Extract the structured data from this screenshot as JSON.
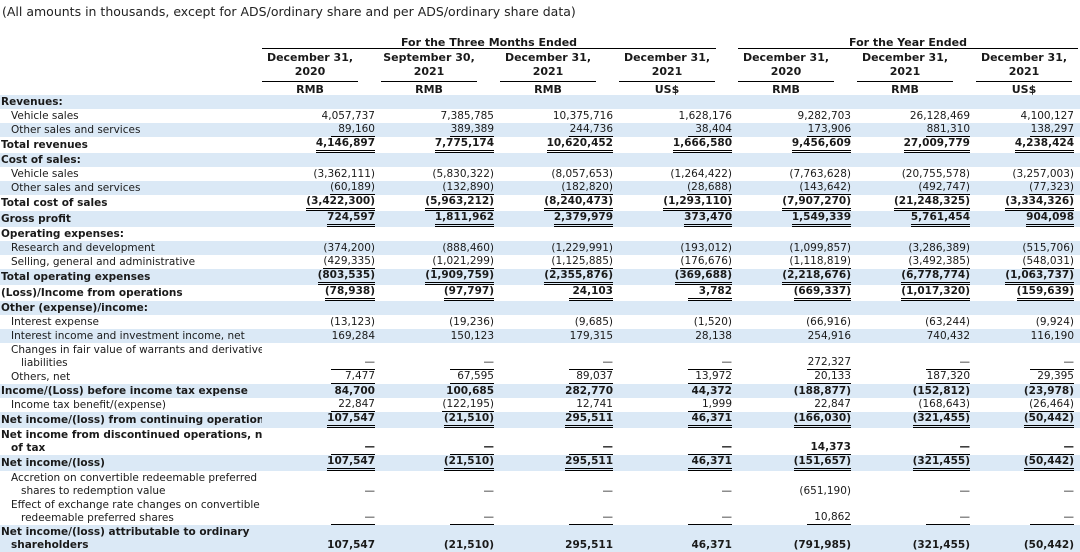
{
  "note": "(All amounts in thousands, except for ADS/ordinary share and per ADS/ordinary share data)",
  "groups": {
    "three_months": "For the Three Months Ended",
    "year": "For the Year Ended"
  },
  "columns": [
    {
      "line1": "December 31,",
      "line2": "2020",
      "ccy": "RMB"
    },
    {
      "line1": "September 30,",
      "line2": "2021",
      "ccy": "RMB"
    },
    {
      "line1": "December 31,",
      "line2": "2021",
      "ccy": "RMB"
    },
    {
      "line1": "December 31,",
      "line2": "2021",
      "ccy": "US$"
    },
    {
      "line1": "December 31,",
      "line2": "2020",
      "ccy": "RMB"
    },
    {
      "line1": "December 31,",
      "line2": "2021",
      "ccy": "RMB"
    },
    {
      "line1": "December 31,",
      "line2": "2021",
      "ccy": "US$"
    }
  ],
  "rows": [
    {
      "label": "Revenues:",
      "values": [
        "",
        "",
        "",
        "",
        "",
        "",
        ""
      ]
    },
    {
      "label": "Vehicle sales",
      "values": [
        "4,057,737",
        "7,385,785",
        "10,375,716",
        "1,628,176",
        "9,282,703",
        "26,128,469",
        "4,100,127"
      ]
    },
    {
      "label": "Other sales and services",
      "values": [
        "89,160",
        "389,389",
        "244,736",
        "38,404",
        "173,906",
        "881,310",
        "138,297"
      ]
    },
    {
      "label": "Total revenues",
      "values": [
        "4,146,897",
        "7,775,174",
        "10,620,452",
        "1,666,580",
        "9,456,609",
        "27,009,779",
        "4,238,424"
      ]
    },
    {
      "label": "Cost of sales:",
      "values": [
        "",
        "",
        "",
        "",
        "",
        "",
        ""
      ]
    },
    {
      "label": "Vehicle sales",
      "values": [
        "(3,362,111)",
        "(5,830,322)",
        "(8,057,653)",
        "(1,264,422)",
        "(7,763,628)",
        "(20,755,578)",
        "(3,257,003)"
      ]
    },
    {
      "label": "Other sales and services",
      "values": [
        "(60,189)",
        "(132,890)",
        "(182,820)",
        "(28,688)",
        "(143,642)",
        "(492,747)",
        "(77,323)"
      ]
    },
    {
      "label": "Total cost of sales",
      "values": [
        "(3,422,300)",
        "(5,963,212)",
        "(8,240,473)",
        "(1,293,110)",
        "(7,907,270)",
        "(21,248,325)",
        "(3,334,326)"
      ]
    },
    {
      "label": "Gross profit",
      "values": [
        "724,597",
        "1,811,962",
        "2,379,979",
        "373,470",
        "1,549,339",
        "5,761,454",
        "904,098"
      ]
    },
    {
      "label": "Operating expenses:",
      "values": [
        "",
        "",
        "",
        "",
        "",
        "",
        ""
      ]
    },
    {
      "label": "Research and development",
      "values": [
        "(374,200)",
        "(888,460)",
        "(1,229,991)",
        "(193,012)",
        "(1,099,857)",
        "(3,286,389)",
        "(515,706)"
      ]
    },
    {
      "label": "Selling, general and administrative",
      "values": [
        "(429,335)",
        "(1,021,299)",
        "(1,125,885)",
        "(176,676)",
        "(1,118,819)",
        "(3,492,385)",
        "(548,031)"
      ]
    },
    {
      "label": "Total operating expenses",
      "values": [
        "(803,535)",
        "(1,909,759)",
        "(2,355,876)",
        "(369,688)",
        "(2,218,676)",
        "(6,778,774)",
        "(1,063,737)"
      ]
    },
    {
      "label": "(Loss)/Income from operations",
      "values": [
        "(78,938)",
        "(97,797)",
        "24,103",
        "3,782",
        "(669,337)",
        "(1,017,320)",
        "(159,639)"
      ]
    },
    {
      "label": "Other (expense)/income:",
      "values": [
        "",
        "",
        "",
        "",
        "",
        "",
        ""
      ]
    },
    {
      "label": "Interest expense",
      "values": [
        "(13,123)",
        "(19,236)",
        "(9,685)",
        "(1,520)",
        "(66,916)",
        "(63,244)",
        "(9,924)"
      ]
    },
    {
      "label": "Interest income and investment income, net",
      "values": [
        "169,284",
        "150,123",
        "179,315",
        "28,138",
        "254,916",
        "740,432",
        "116,190"
      ]
    },
    {
      "label": "Changes in fair value of warrants and derivative",
      "label2": "liabilities",
      "values": [
        "—",
        "—",
        "—",
        "—",
        "272,327",
        "—",
        "—"
      ]
    },
    {
      "label": "Others, net",
      "values": [
        "7,477",
        "67,595",
        "89,037",
        "13,972",
        "20,133",
        "187,320",
        "29,395"
      ]
    },
    {
      "label": "Income/(Loss) before income tax expense",
      "values": [
        "84,700",
        "100,685",
        "282,770",
        "44,372",
        "(188,877)",
        "(152,812)",
        "(23,978)"
      ]
    },
    {
      "label": "Income tax benefit/(expense)",
      "values": [
        "22,847",
        "(122,195)",
        "12,741",
        "1,999",
        "22,847",
        "(168,643)",
        "(26,464)"
      ]
    },
    {
      "label": "Net income/(loss) from continuing operations",
      "values": [
        "107,547",
        "(21,510)",
        "295,511",
        "46,371",
        "(166,030)",
        "(321,455)",
        "(50,442)"
      ]
    },
    {
      "label": "Net income from discontinued operations, net",
      "label2": "of tax",
      "values": [
        "—",
        "—",
        "—",
        "—",
        "14,373",
        "—",
        "—"
      ]
    },
    {
      "label": "Net income/(loss)",
      "values": [
        "107,547",
        "(21,510)",
        "295,511",
        "46,371",
        "(151,657)",
        "(321,455)",
        "(50,442)"
      ]
    },
    {
      "label": "Accretion on convertible redeemable preferred",
      "label2": "shares to redemption value",
      "values": [
        "—",
        "—",
        "—",
        "—",
        "(651,190)",
        "—",
        "—"
      ]
    },
    {
      "label": "Effect of exchange rate changes on convertible",
      "label2": "redeemable preferred shares",
      "values": [
        "—",
        "—",
        "—",
        "—",
        "10,862",
        "—",
        "—"
      ]
    },
    {
      "label": "Net income/(loss) attributable to ordinary",
      "label2": "shareholders",
      "values": [
        "107,547",
        "(21,510)",
        "295,511",
        "46,371",
        "(791,985)",
        "(321,455)",
        "(50,442)"
      ]
    }
  ]
}
